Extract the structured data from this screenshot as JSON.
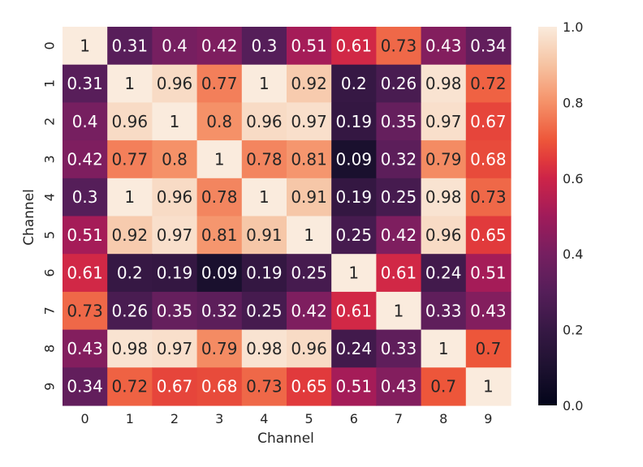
{
  "chart_data": {
    "type": "heatmap",
    "title": "",
    "xlabel": "Channel",
    "ylabel": "Channel",
    "x_categories": [
      "0",
      "1",
      "2",
      "3",
      "4",
      "5",
      "6",
      "7",
      "8",
      "9"
    ],
    "y_categories": [
      "0",
      "1",
      "2",
      "3",
      "4",
      "5",
      "6",
      "7",
      "8",
      "9"
    ],
    "values": [
      [
        1,
        0.31,
        0.4,
        0.42,
        0.3,
        0.51,
        0.61,
        0.73,
        0.43,
        0.34
      ],
      [
        0.31,
        1,
        0.96,
        0.77,
        1,
        0.92,
        0.2,
        0.26,
        0.98,
        0.72
      ],
      [
        0.4,
        0.96,
        1,
        0.8,
        0.96,
        0.97,
        0.19,
        0.35,
        0.97,
        0.67
      ],
      [
        0.42,
        0.77,
        0.8,
        1,
        0.78,
        0.81,
        0.09,
        0.32,
        0.79,
        0.68
      ],
      [
        0.3,
        1,
        0.96,
        0.78,
        1,
        0.91,
        0.19,
        0.25,
        0.98,
        0.73
      ],
      [
        0.51,
        0.92,
        0.97,
        0.81,
        0.91,
        1,
        0.25,
        0.42,
        0.96,
        0.65
      ],
      [
        0.61,
        0.2,
        0.19,
        0.09,
        0.19,
        0.25,
        1,
        0.61,
        0.24,
        0.51
      ],
      [
        0.73,
        0.26,
        0.35,
        0.32,
        0.25,
        0.42,
        0.61,
        1,
        0.33,
        0.43
      ],
      [
        0.43,
        0.98,
        0.97,
        0.79,
        0.98,
        0.96,
        0.24,
        0.33,
        1,
        0.7
      ],
      [
        0.34,
        0.72,
        0.67,
        0.68,
        0.73,
        0.65,
        0.51,
        0.43,
        0.7,
        1
      ]
    ],
    "color_range": [
      0.0,
      1.0
    ],
    "colorbar_ticks": [
      "0.0",
      "0.2",
      "0.4",
      "0.6",
      "0.8",
      "1.0"
    ],
    "colormap": "rocket",
    "grid": false,
    "legend": "colorbar-right"
  }
}
